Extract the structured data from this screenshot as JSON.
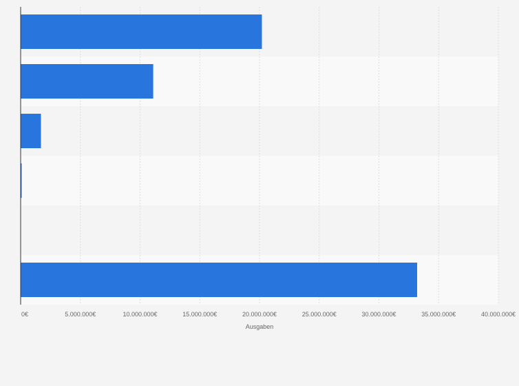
{
  "chart_data": {
    "type": "bar",
    "orientation": "horizontal",
    "categories": [
      "",
      "",
      "",
      "",
      "",
      ""
    ],
    "values": [
      20200000,
      11100000,
      1700000,
      60000,
      0,
      33200000
    ],
    "xlabel": "Ausgaben",
    "ylabel": "",
    "xlim": [
      0,
      40000000
    ],
    "x_ticks": [
      0,
      5000000,
      10000000,
      15000000,
      20000000,
      25000000,
      30000000,
      35000000,
      40000000
    ],
    "x_tick_labels": [
      "0€",
      "5.000.000€",
      "10.000.000€",
      "15.000.000€",
      "20.000.000€",
      "25.000.000€",
      "30.000.000€",
      "35.000.000€",
      "40.000.000€"
    ],
    "grid": "vertical-dashed",
    "legend": "none",
    "colors": {
      "bar": "#2876dd",
      "band_dark": "#f4f4f4",
      "band_light": "#f9f9f9",
      "grid": "#dddddd",
      "axis": "#333333",
      "text": "#666666"
    }
  }
}
